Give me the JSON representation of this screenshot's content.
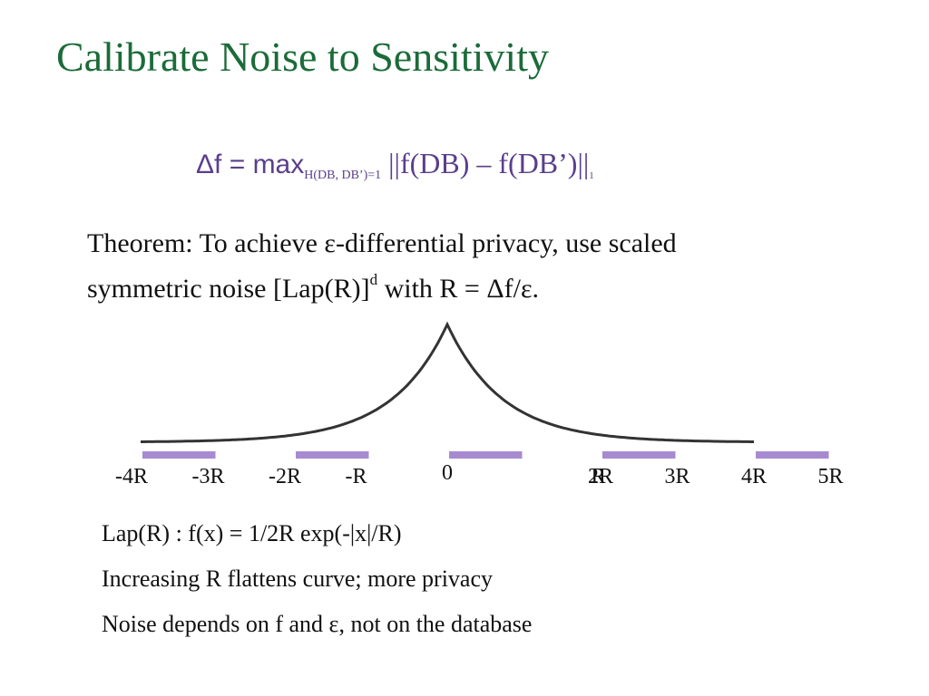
{
  "slide": {
    "title": "Calibrate Noise to Sensitivity",
    "formula": {
      "lhs": "Δf = max",
      "subscript": "H(DB, DB’)=1",
      "rhs": "||f(DB) – f(DB’)||",
      "norm_subscript": "1"
    },
    "theorem": {
      "line1": "Theorem: To achieve ε-differential privacy, use scaled",
      "line2_before": "symmetric noise [Lap(R)]",
      "line2_sup": "d",
      "line2_after": " with R = Δf/ε."
    },
    "notes": [
      "Lap(R) :  f(x) = 1/2R exp(-|x|/R)",
      "Increasing R flattens curve; more privacy",
      "Noise depends on f and ε, not on the database"
    ]
  },
  "chart_data": {
    "type": "line",
    "title": "",
    "function": "Laplace density",
    "xlim": [
      -4,
      4
    ],
    "peak_at": 0,
    "tick_labels": [
      "-4R",
      "-3R",
      "-2R",
      "-R",
      "0",
      "R",
      "2R",
      "3R",
      "4R",
      "5R"
    ],
    "interval_bars": [
      [
        -4,
        -3
      ],
      [
        -2,
        -1
      ],
      [
        0,
        1
      ],
      [
        2,
        3
      ],
      [
        4,
        5
      ]
    ],
    "colors": {
      "curve": "#333333",
      "bars": "#a78bd0"
    }
  }
}
